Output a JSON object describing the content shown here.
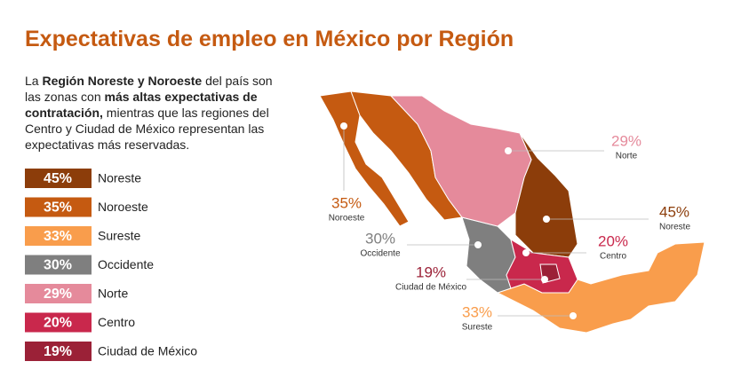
{
  "chart_data": {
    "type": "map",
    "title": "Expectativas de empleo en México por Región",
    "categories": [
      "Noreste",
      "Noroeste",
      "Sureste",
      "Occidente",
      "Norte",
      "Centro",
      "Ciudad de México"
    ],
    "values": [
      45,
      35,
      33,
      30,
      29,
      20,
      19
    ],
    "value_labels": [
      "45%",
      "35%",
      "33%",
      "30%",
      "29%",
      "20%",
      "19%"
    ],
    "colors": [
      "#8c3d0a",
      "#c55a11",
      "#f99d4c",
      "#7f7f7f",
      "#e58a9b",
      "#c9284c",
      "#9b2137"
    ]
  },
  "description": [
    {
      "text": "La ",
      "bold": false
    },
    {
      "text": "Región Noreste y Noroeste",
      "bold": true
    },
    {
      "text": " del país son las zonas con ",
      "bold": false
    },
    {
      "text": "más altas expectativas de contratación,",
      "bold": true
    },
    {
      "text": " mientras que las regiones del Centro y Ciudad de México representan las expectativas más reservadas.",
      "bold": false
    }
  ]
}
